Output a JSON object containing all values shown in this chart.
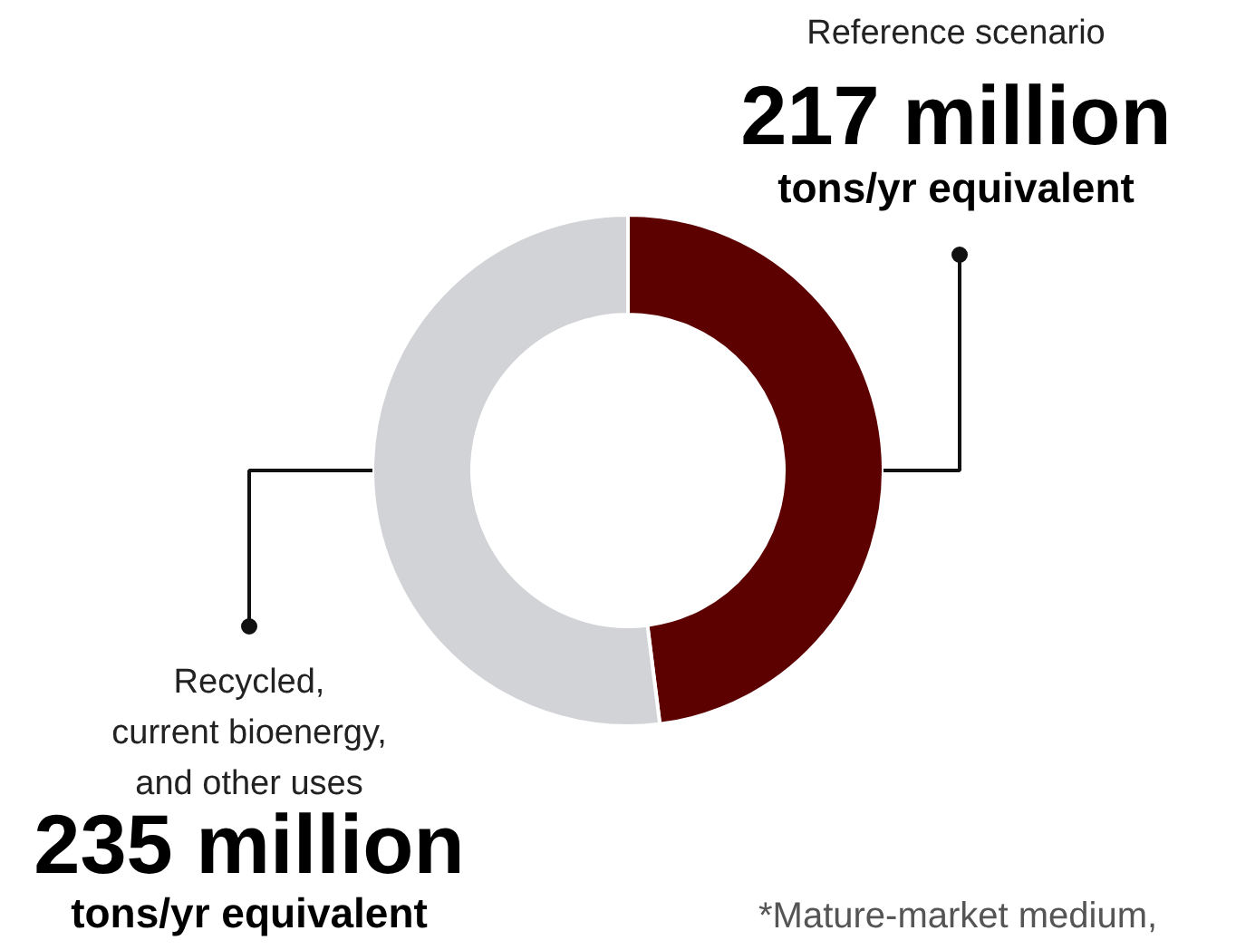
{
  "chart_data": {
    "type": "donut",
    "categories": [
      "Reference scenario",
      "Recycled,\ncurrent bioenergy,\nand other uses"
    ],
    "values": [
      217,
      235
    ],
    "colors": [
      "#5c0000",
      "#d1d3d6"
    ],
    "value_labels": [
      "217 million",
      "235 million"
    ],
    "annotations": [
      "tons/yr equivalent",
      "tons/yr equivalent",
      "*Mature-market medium,"
    ]
  }
}
